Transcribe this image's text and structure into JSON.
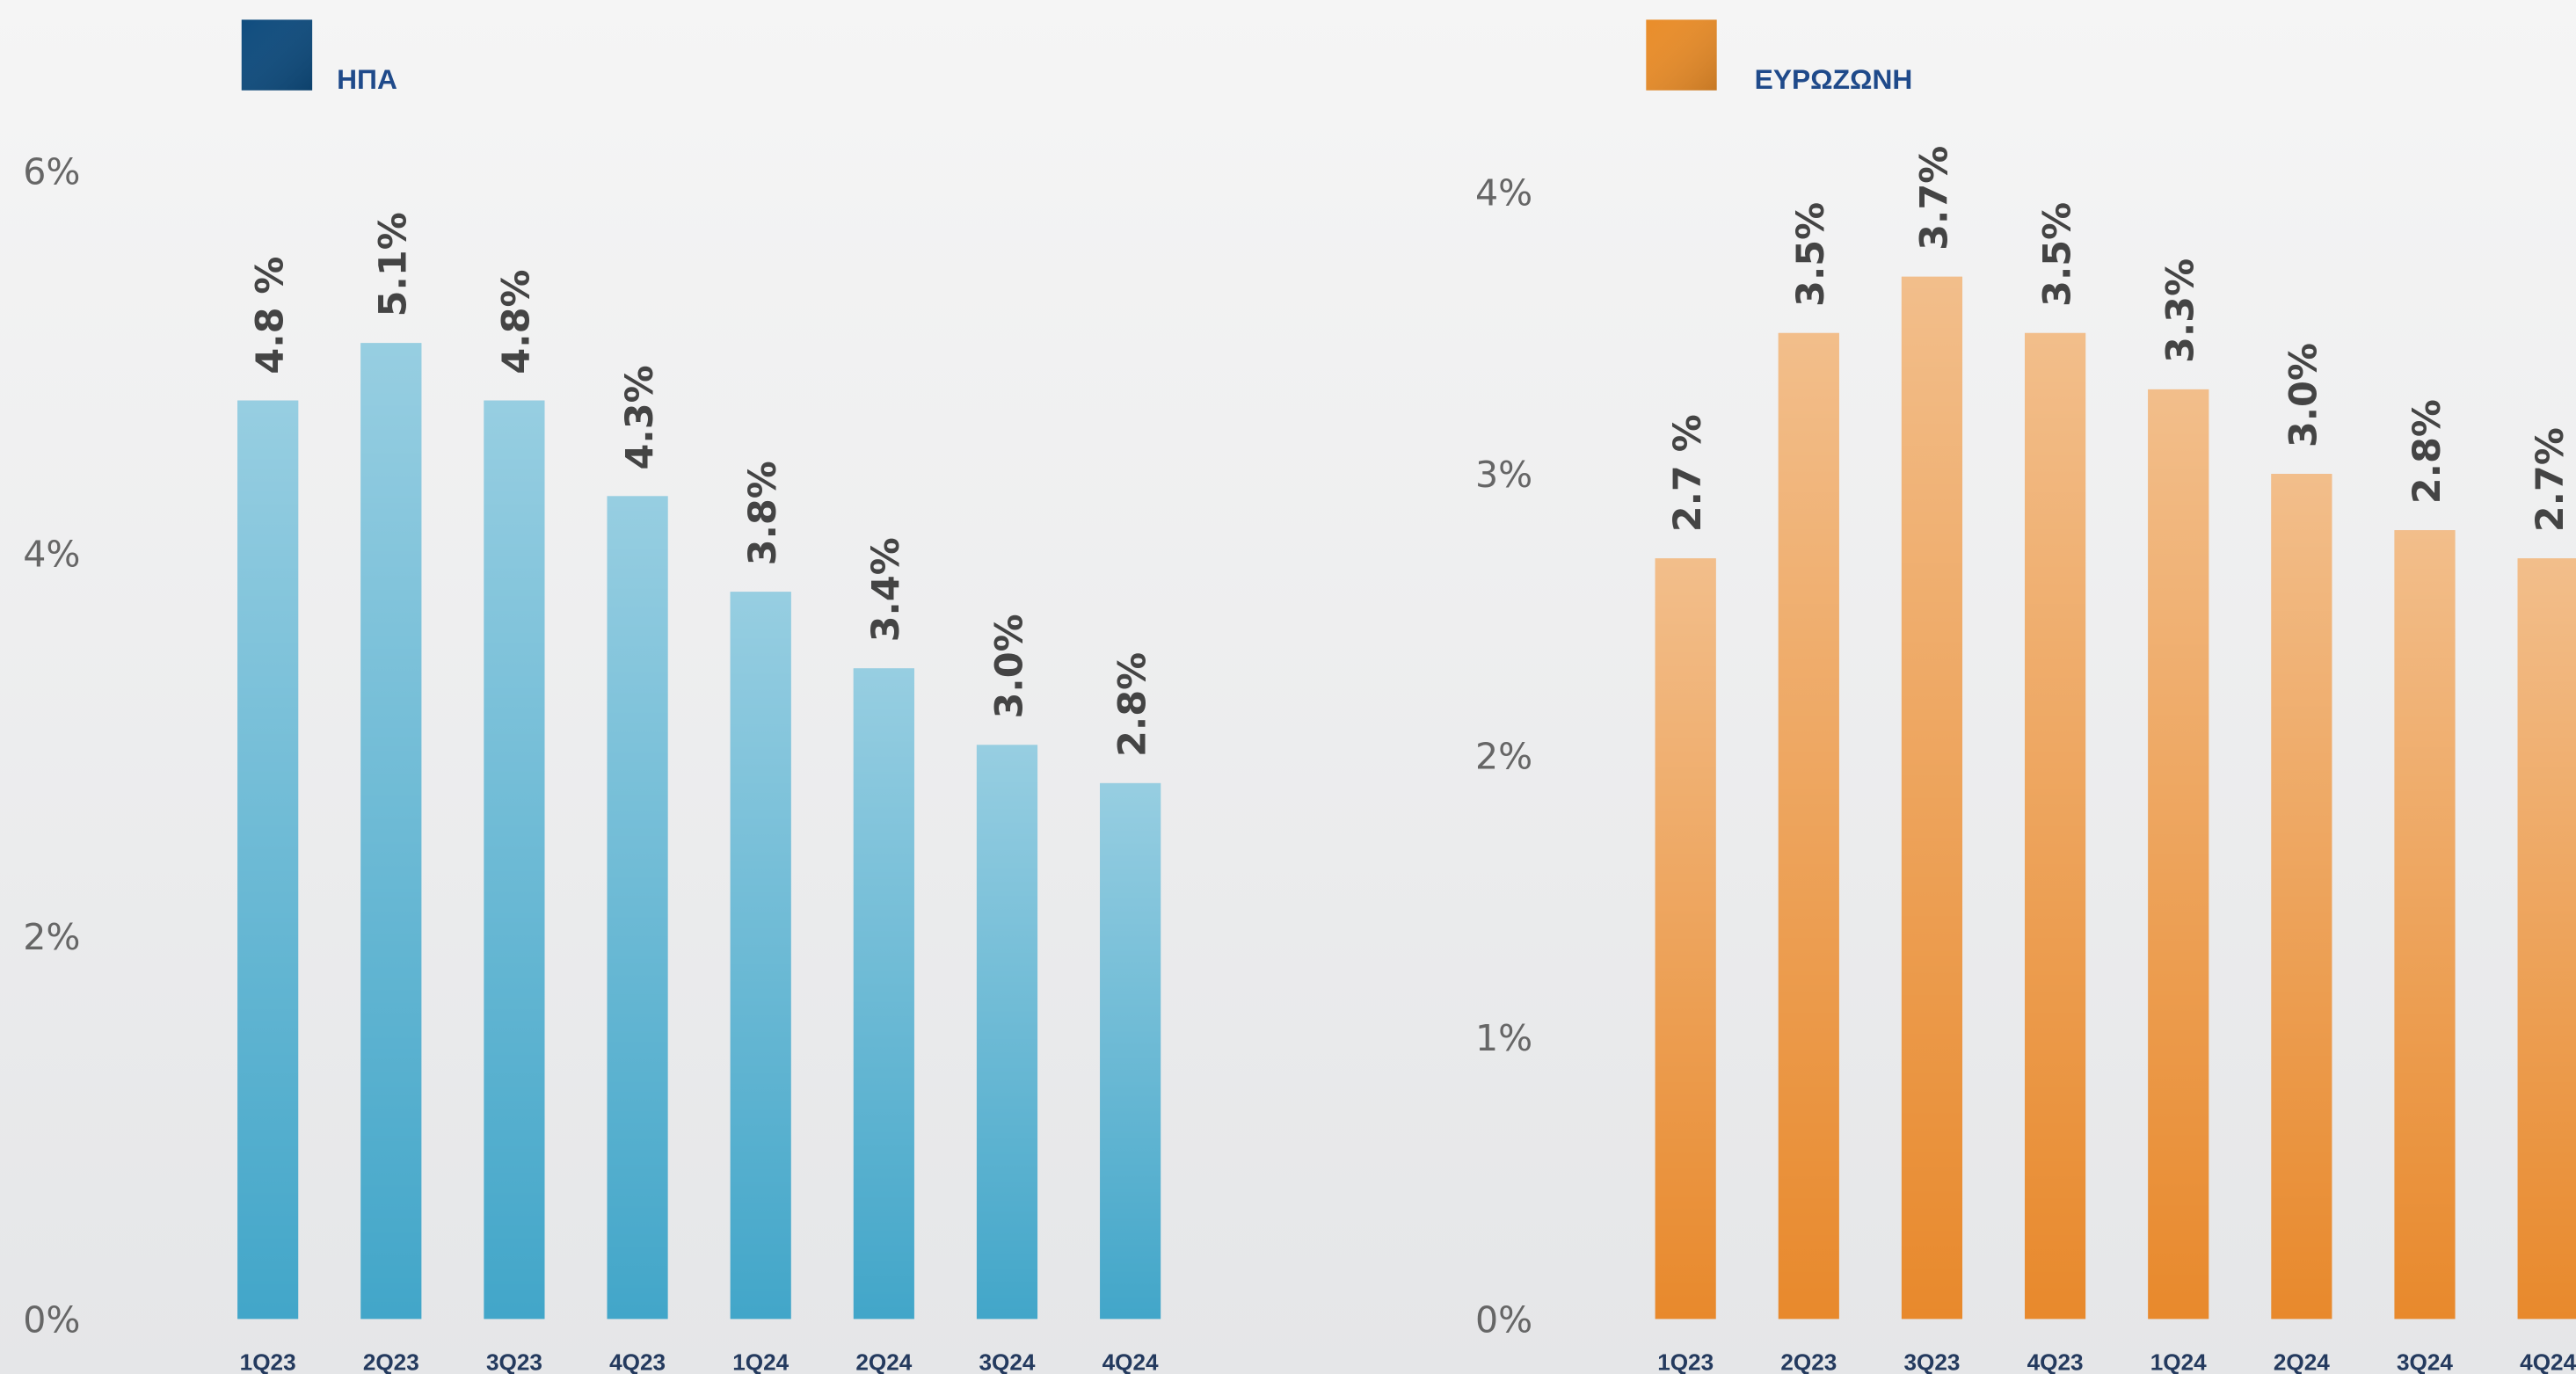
{
  "chart_data": [
    {
      "type": "bar",
      "ylim": [
        0,
        6
      ],
      "yticks": [
        {
          "value": 0,
          "label": "0%"
        },
        {
          "value": 2,
          "label": "2%"
        },
        {
          "value": 4,
          "label": "4%"
        },
        {
          "value": 6,
          "label": "6%"
        }
      ],
      "categories": [
        "1Q23",
        "2Q23",
        "3Q23",
        "4Q23",
        "1Q24",
        "2Q24",
        "3Q24",
        "4Q24"
      ],
      "legend_color": "#0f4c7e",
      "series": [
        {
          "name": "ΗΠΑ",
          "color": "#42a6c9",
          "values": [
            4.8,
            5.1,
            4.8,
            4.3,
            3.8,
            3.4,
            3.0,
            2.8
          ],
          "value_labels": [
            "4.8 %",
            "5.1%",
            "4.8%",
            "4.3%",
            "3.8%",
            "3.4%",
            "3.0%",
            "2.8%"
          ]
        }
      ]
    },
    {
      "type": "bar",
      "ylim": [
        0,
        4
      ],
      "yticks": [
        {
          "value": 0,
          "label": "0%"
        },
        {
          "value": 1,
          "label": "1%"
        },
        {
          "value": 2,
          "label": "2%"
        },
        {
          "value": 3,
          "label": "3%"
        },
        {
          "value": 4,
          "label": "4%"
        }
      ],
      "categories": [
        "1Q23",
        "2Q23",
        "3Q23",
        "4Q23",
        "1Q24",
        "2Q24",
        "3Q24",
        "4Q24"
      ],
      "legend_color": "#e98d2a",
      "series": [
        {
          "name": "ΕΥΡΩΖΩΝΗ",
          "color": "#e8892c",
          "values": [
            2.7,
            3.5,
            3.7,
            3.5,
            3.3,
            3.0,
            2.8,
            2.7
          ],
          "value_labels": [
            "2.7 %",
            "3.5%",
            "3.7%",
            "3.5%",
            "3.3%",
            "3.0%",
            "2.8%",
            "2.7%"
          ]
        }
      ]
    }
  ]
}
